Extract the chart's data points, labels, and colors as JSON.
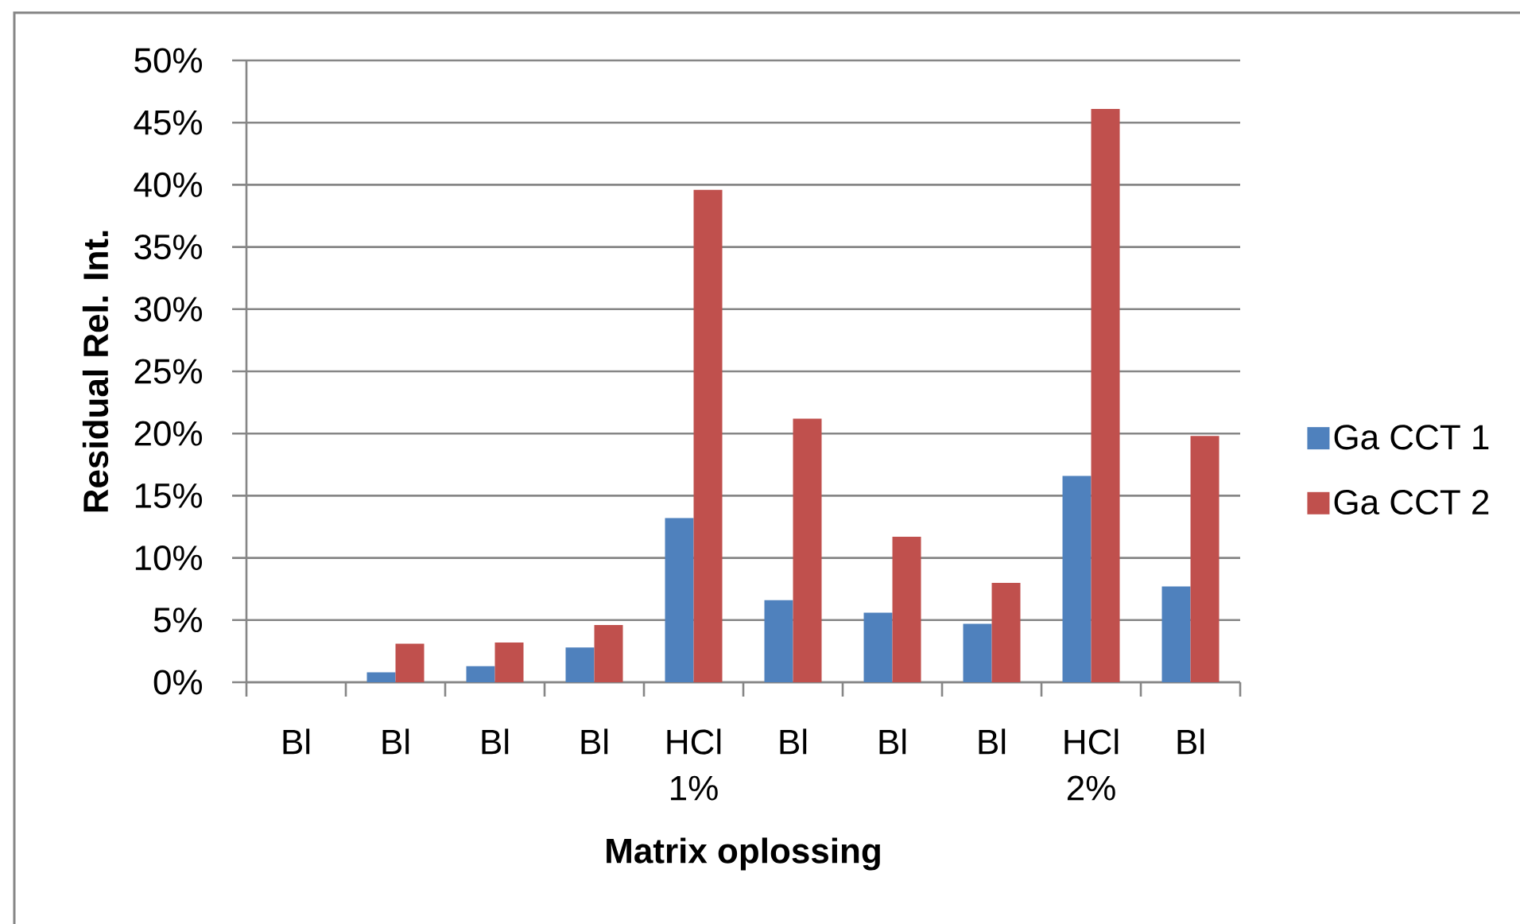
{
  "chart_data": {
    "type": "bar",
    "xlabel": "Matrix oplossing",
    "ylabel": "Residual Rel. Int.",
    "categories": [
      "Bl",
      "Bl",
      "Bl",
      "Bl",
      "HCl 1%",
      "Bl",
      "Bl",
      "Bl",
      "HCl 2%",
      "Bl"
    ],
    "series": [
      {
        "name": "Ga CCT 1",
        "color": "#4f81bd",
        "values": [
          null,
          0.8,
          1.3,
          2.8,
          13.2,
          6.6,
          5.6,
          4.7,
          16.6,
          7.7
        ]
      },
      {
        "name": "Ga CCT 2",
        "color": "#c0504d",
        "values": [
          null,
          3.1,
          3.2,
          4.6,
          39.6,
          21.2,
          11.7,
          8.0,
          46.1,
          19.8
        ]
      }
    ],
    "ylim": [
      0,
      50
    ],
    "yticks": [
      {
        "value": 0,
        "label": "0%"
      },
      {
        "value": 5,
        "label": "5%"
      },
      {
        "value": 10,
        "label": "10%"
      },
      {
        "value": 15,
        "label": "15%"
      },
      {
        "value": 20,
        "label": "20%"
      },
      {
        "value": 25,
        "label": "25%"
      },
      {
        "value": 30,
        "label": "30%"
      },
      {
        "value": 35,
        "label": "35%"
      },
      {
        "value": 40,
        "label": "40%"
      },
      {
        "value": 45,
        "label": "45%"
      },
      {
        "value": 50,
        "label": "50%"
      }
    ],
    "grid": "y",
    "legend": "right"
  }
}
